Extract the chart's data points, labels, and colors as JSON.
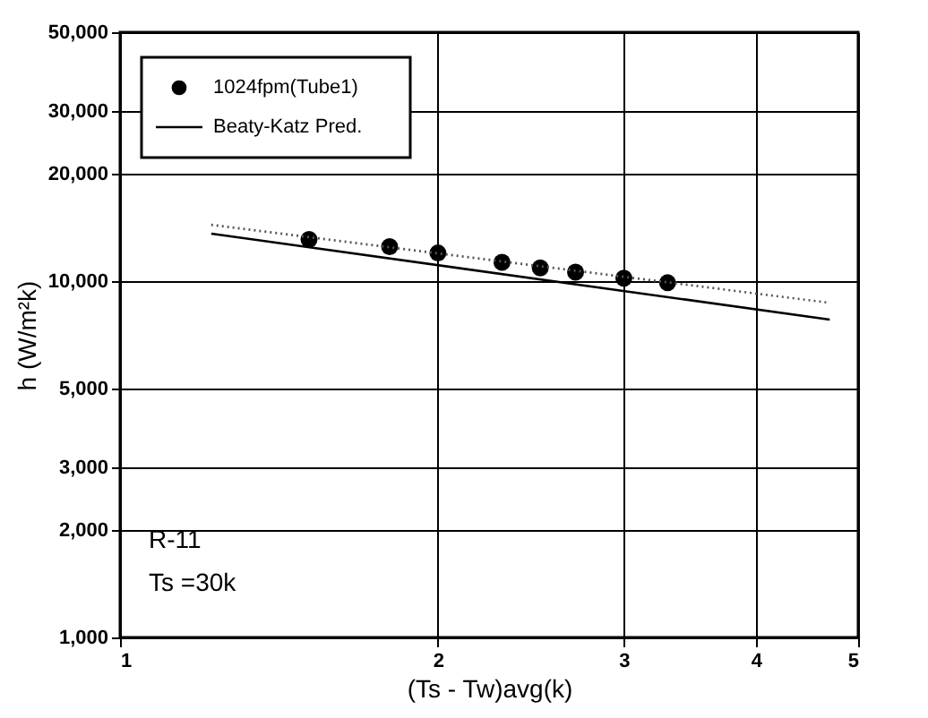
{
  "chart_data": {
    "type": "scatter",
    "xlabel": "(Ts - Tw)avg(k)",
    "ylabel": "h (W/m²k)",
    "log": "xy",
    "grid": true,
    "legend": "top left",
    "xlim": [
      1,
      5
    ],
    "xticks": [
      1,
      2,
      3,
      4,
      5
    ],
    "ylim": [
      1000,
      50000
    ],
    "yticks": [
      {
        "value": 1000,
        "label": "1,000"
      },
      {
        "value": 2000,
        "label": "2,000"
      },
      {
        "value": 3000,
        "label": "3,000"
      },
      {
        "value": 5000,
        "label": "5,000"
      },
      {
        "value": 10000,
        "label": "10,000"
      },
      {
        "value": 20000,
        "label": "20,000"
      },
      {
        "value": 30000,
        "label": "30,000"
      },
      {
        "value": 50000,
        "label": "50,000"
      }
    ],
    "series": [
      {
        "name": "1024fpm(Tube1)",
        "marker": "circle",
        "color": "#000000",
        "x": [
          1.51,
          1.8,
          2.0,
          2.3,
          2.5,
          2.7,
          3.0,
          3.3
        ],
        "values": [
          13100,
          12500,
          12000,
          11300,
          10900,
          10600,
          10200,
          9900
        ]
      },
      {
        "name": "Beaty-Katz Pred.",
        "type": "line",
        "marker": "none",
        "line_style": "solid",
        "color": "#000000",
        "x": [
          1.22,
          4.7
        ],
        "values": [
          13600,
          7800
        ]
      },
      {
        "type": "line",
        "marker": "none",
        "line_style": "dotted",
        "color": "#555555",
        "x": [
          1.22,
          4.7
        ],
        "values": [
          14400,
          8700
        ]
      }
    ],
    "annotations": [
      "R-11",
      "Ts =30k"
    ]
  }
}
